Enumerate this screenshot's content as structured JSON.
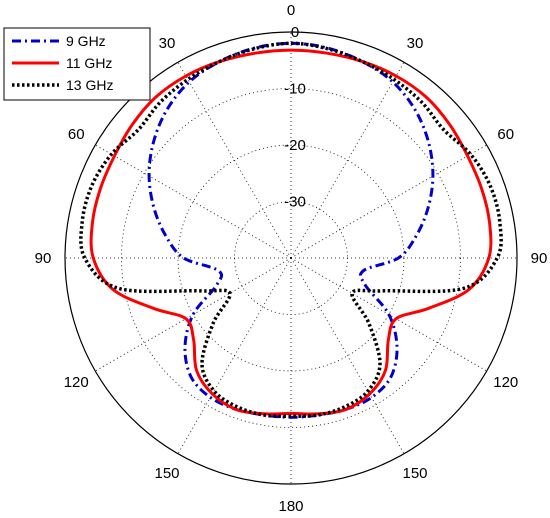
{
  "chart_data": {
    "type": "line",
    "coordinate_system": "polar",
    "title": "",
    "angle_unit": "degrees",
    "angle_zero": "top",
    "angle_direction": "symmetric-both-sides",
    "angular_ticks": [
      "0",
      "30",
      "60",
      "90",
      "120",
      "150",
      "180",
      "150",
      "120",
      "90",
      "60",
      "30"
    ],
    "radial_ticks": [
      "0",
      "-10",
      "-20",
      "-30"
    ],
    "radial_range_db": [
      -40,
      0
    ],
    "grid": true,
    "legend_position": "top-left",
    "series": [
      {
        "name": "9 GHz",
        "color": "#0000cc",
        "style": "dash-dot",
        "angles_deg": [
          0,
          10,
          20,
          30,
          40,
          50,
          60,
          70,
          80,
          90,
          100,
          110,
          120,
          130,
          140,
          150,
          160,
          170,
          180
        ],
        "values_db": [
          -2.0,
          -2.3,
          -3.0,
          -4.0,
          -5.8,
          -8.2,
          -11.0,
          -14.2,
          -17.5,
          -21.0,
          -27.0,
          -26.0,
          -20.0,
          -15.5,
          -12.5,
          -11.5,
          -11.5,
          -11.8,
          -11.8
        ]
      },
      {
        "name": "11 GHz",
        "color": "#ff0000",
        "style": "solid",
        "angles_deg": [
          0,
          10,
          20,
          30,
          40,
          50,
          60,
          70,
          80,
          90,
          100,
          110,
          120,
          130,
          140,
          150,
          160,
          170,
          180
        ],
        "values_db": [
          -3.2,
          -3.2,
          -3.0,
          -2.8,
          -2.8,
          -3.3,
          -3.9,
          -4.1,
          -4.3,
          -5.0,
          -8.0,
          -14.0,
          -18.5,
          -17.5,
          -14.0,
          -12.2,
          -11.5,
          -12.0,
          -12.5
        ]
      },
      {
        "name": "13 GHz",
        "color": "#000000",
        "style": "dotted",
        "angles_deg": [
          0,
          10,
          20,
          30,
          40,
          50,
          60,
          70,
          80,
          90,
          100,
          110,
          120,
          130,
          140,
          150,
          160,
          170,
          180
        ],
        "values_db": [
          -2.0,
          -2.4,
          -3.0,
          -3.5,
          -4.0,
          -4.7,
          -3.3,
          -2.5,
          -2.5,
          -3.5,
          -9.0,
          -23.0,
          -27.5,
          -22.0,
          -15.5,
          -12.8,
          -12.0,
          -11.8,
          -12.0
        ]
      }
    ]
  }
}
